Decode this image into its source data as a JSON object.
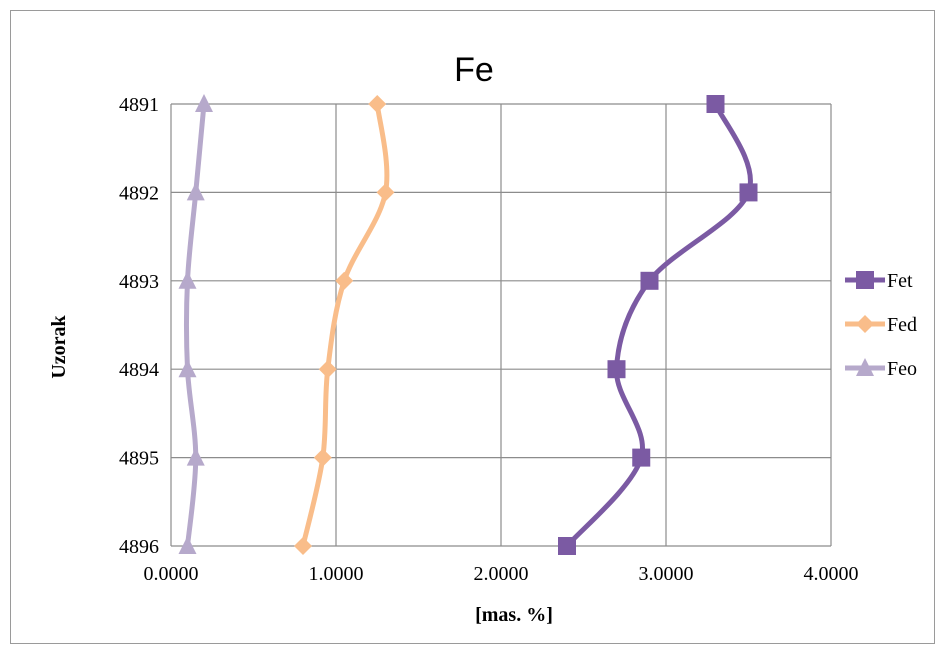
{
  "chart_data": {
    "type": "line",
    "title": "Fe",
    "xlabel": "[mas. %]",
    "ylabel": "Uzorak",
    "xlim": [
      0,
      4
    ],
    "x_ticks": [
      "0.0000",
      "1.0000",
      "2.0000",
      "3.0000",
      "4.0000"
    ],
    "categories": [
      "4891",
      "4892",
      "4893",
      "4894",
      "4895",
      "4896"
    ],
    "grid": true,
    "legend_position": "right",
    "series": [
      {
        "name": "Fet",
        "values": [
          3.3,
          3.5,
          2.9,
          2.7,
          2.85,
          2.4
        ],
        "color": "#7b5aa3",
        "marker": "square"
      },
      {
        "name": "Fed",
        "values": [
          1.25,
          1.3,
          1.05,
          0.95,
          0.92,
          0.8
        ],
        "color": "#f9bd8a",
        "marker": "diamond"
      },
      {
        "name": "Feo",
        "values": [
          0.2,
          0.15,
          0.1,
          0.1,
          0.15,
          0.1
        ],
        "color": "#b6a9cb",
        "marker": "triangle"
      }
    ]
  }
}
